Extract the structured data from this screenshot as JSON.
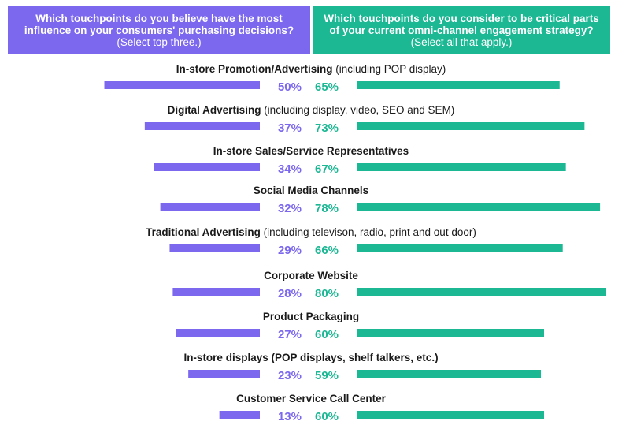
{
  "colors": {
    "influence": "#7b68ee",
    "critical": "#1cb894",
    "text": "#1a1a1a"
  },
  "headers": {
    "left": {
      "question": "Which touchpoints do you believe have the most influence on your consumers' purchasing decisions?",
      "note": "(Select top three.)"
    },
    "right": {
      "question": "Which touchpoints do you consider to be critical parts of your current omni-channel engagement strategy?",
      "note": "(Select all that apply.)"
    }
  },
  "chart_data": {
    "type": "bar",
    "orientation": "horizontal-butterfly",
    "categories": [
      {
        "bold": "In-store Promotion/Advertising",
        "suffix": " (including POP display)"
      },
      {
        "bold": "Digital Advertising",
        "suffix": " (including display, video, SEO and SEM)"
      },
      {
        "bold": "In-store Sales/Service Representatives",
        "suffix": ""
      },
      {
        "bold": "Social Media Channels",
        "suffix": ""
      },
      {
        "bold": "Traditional Advertising",
        "suffix": " (including televison, radio, print and out door)"
      },
      {
        "bold": "Corporate Website",
        "suffix": ""
      },
      {
        "bold": "Product Packaging",
        "suffix": ""
      },
      {
        "bold": "In-store displays (POP displays, shelf talkers, etc.)",
        "suffix": ""
      },
      {
        "bold": "Customer Service Call Center",
        "suffix": ""
      }
    ],
    "series": [
      {
        "values": [
          50,
          37,
          34,
          32,
          29,
          28,
          27,
          23,
          13
        ],
        "labels": [
          "50%",
          "37%",
          "34%",
          "32%",
          "29%",
          "28%",
          "27%",
          "23%",
          "13%"
        ]
      },
      {
        "values": [
          65,
          73,
          67,
          78,
          66,
          80,
          60,
          59,
          60
        ],
        "labels": [
          "65%",
          "73%",
          "67%",
          "78%",
          "66%",
          "80%",
          "60%",
          "59%",
          "60%"
        ]
      }
    ],
    "unit": "%"
  }
}
